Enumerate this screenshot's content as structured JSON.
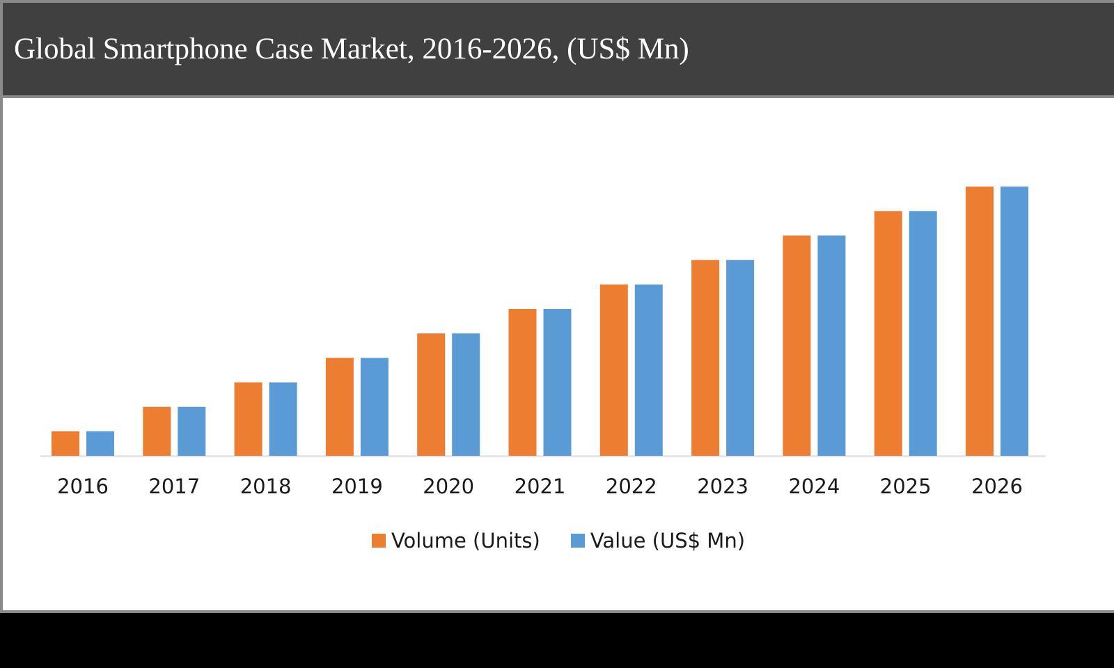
{
  "header": {
    "title": "Global Smartphone Case Market, 2016-2026, (US$ Mn)"
  },
  "colors": {
    "volume": "#ED7D31",
    "value": "#5B9BD5",
    "axis": "#d9d9d9"
  },
  "chart_data": {
    "type": "bar",
    "title": "Global Smartphone Case Market, 2016-2026, (US$ Mn)",
    "xlabel": "",
    "ylabel": "",
    "ylim": [
      0,
      12
    ],
    "grid": false,
    "legend_position": "bottom",
    "categories": [
      "2016",
      "2017",
      "2018",
      "2019",
      "2020",
      "2021",
      "2022",
      "2023",
      "2024",
      "2025",
      "2026"
    ],
    "series": [
      {
        "name": "Volume (Units)",
        "color": "#ED7D31",
        "values": [
          1,
          2,
          3,
          4,
          5,
          6,
          7,
          8,
          9,
          10,
          11
        ]
      },
      {
        "name": "Value (US$ Mn)",
        "color": "#5B9BD5",
        "values": [
          1,
          2,
          3,
          4,
          5,
          6,
          7,
          8,
          9,
          10,
          11
        ]
      }
    ]
  }
}
